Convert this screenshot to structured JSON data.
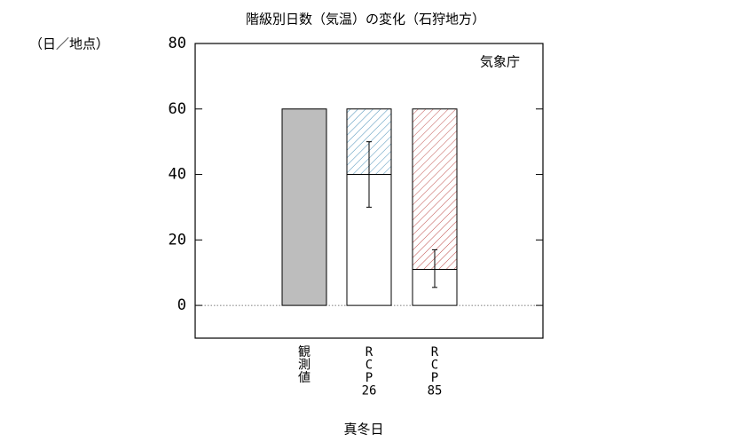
{
  "chart_data": {
    "type": "bar",
    "title": "階級別日数（気温）の変化（石狩地方）",
    "y_label": "（日／地点）",
    "source": "気象庁",
    "x_label": "真冬日",
    "categories": [
      [
        "観",
        "測",
        "値"
      ],
      [
        "R",
        "C",
        "P",
        "26"
      ],
      [
        "R",
        "C",
        "P",
        "85"
      ]
    ],
    "values": [
      60,
      40,
      11
    ],
    "reference": [
      null,
      60,
      60
    ],
    "error_low": [
      null,
      30,
      5.5
    ],
    "error_high": [
      null,
      50,
      17
    ],
    "colors": [
      "#bdbdbd",
      "#ffffff",
      "#ffffff"
    ],
    "hatch_colors": [
      null,
      "#4a90b8",
      "#c0504d"
    ],
    "ylim": [
      -10,
      80
    ],
    "yticks": [
      0,
      20,
      40,
      60,
      80
    ]
  }
}
